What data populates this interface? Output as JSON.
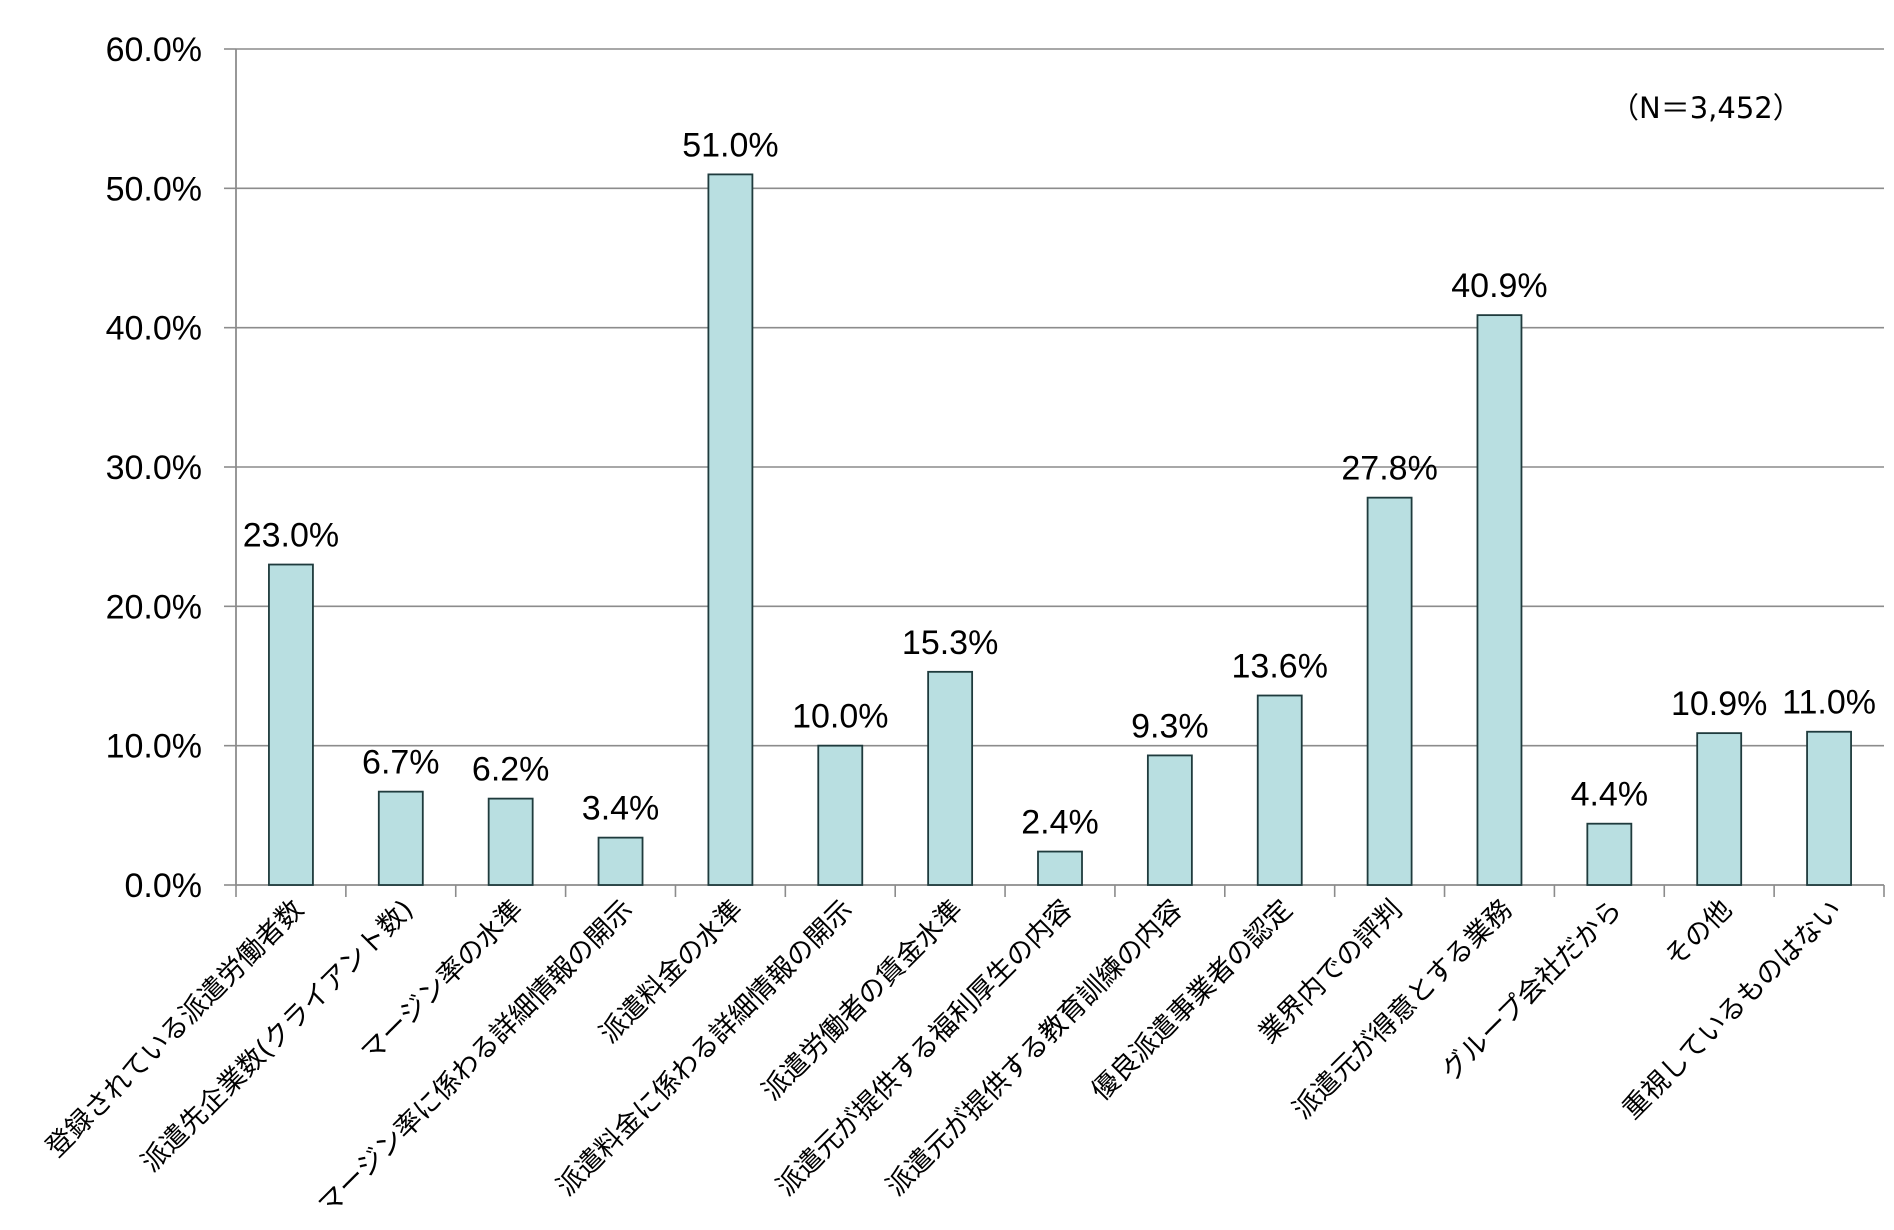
{
  "chart_data": {
    "type": "bar",
    "annotation": "（N＝3,452）",
    "categories": [
      "登録されている派遣労働者数",
      "派遣先企業数(クライアント数)",
      "マージン率の水準",
      "マージン率に係わる詳細情報の開示",
      "派遣料金の水準",
      "派遣料金に係わる詳細情報の開示",
      "派遣労働者の賃金水準",
      "派遣元が提供する福利厚生の内容",
      "派遣元が提供する教育訓練の内容",
      "優良派遣事業者の認定",
      "業界内での評判",
      "派遣元が得意とする業務",
      "グループ会社だから",
      "その他",
      "重視しているものはない"
    ],
    "values": [
      23.0,
      6.7,
      6.2,
      3.4,
      51.0,
      10.0,
      15.3,
      2.4,
      9.3,
      13.6,
      27.8,
      40.9,
      4.4,
      10.9,
      11.0
    ],
    "data_labels": [
      "23.0%",
      "6.7%",
      "6.2%",
      "3.4%",
      "51.0%",
      "10.0%",
      "15.3%",
      "2.4%",
      "9.3%",
      "13.6%",
      "27.8%",
      "40.9%",
      "4.4%",
      "10.9%",
      "11.0%"
    ],
    "yticks": [
      "0.0%",
      "10.0%",
      "20.0%",
      "30.0%",
      "40.0%",
      "50.0%",
      "60.0%"
    ],
    "ylim": [
      0,
      60
    ],
    "grid": true,
    "colors": {
      "bar_fill": "#b9dfe1",
      "bar_stroke": "#1f3b3d",
      "grid": "#8c8c8c",
      "axis": "#8c8c8c"
    }
  }
}
